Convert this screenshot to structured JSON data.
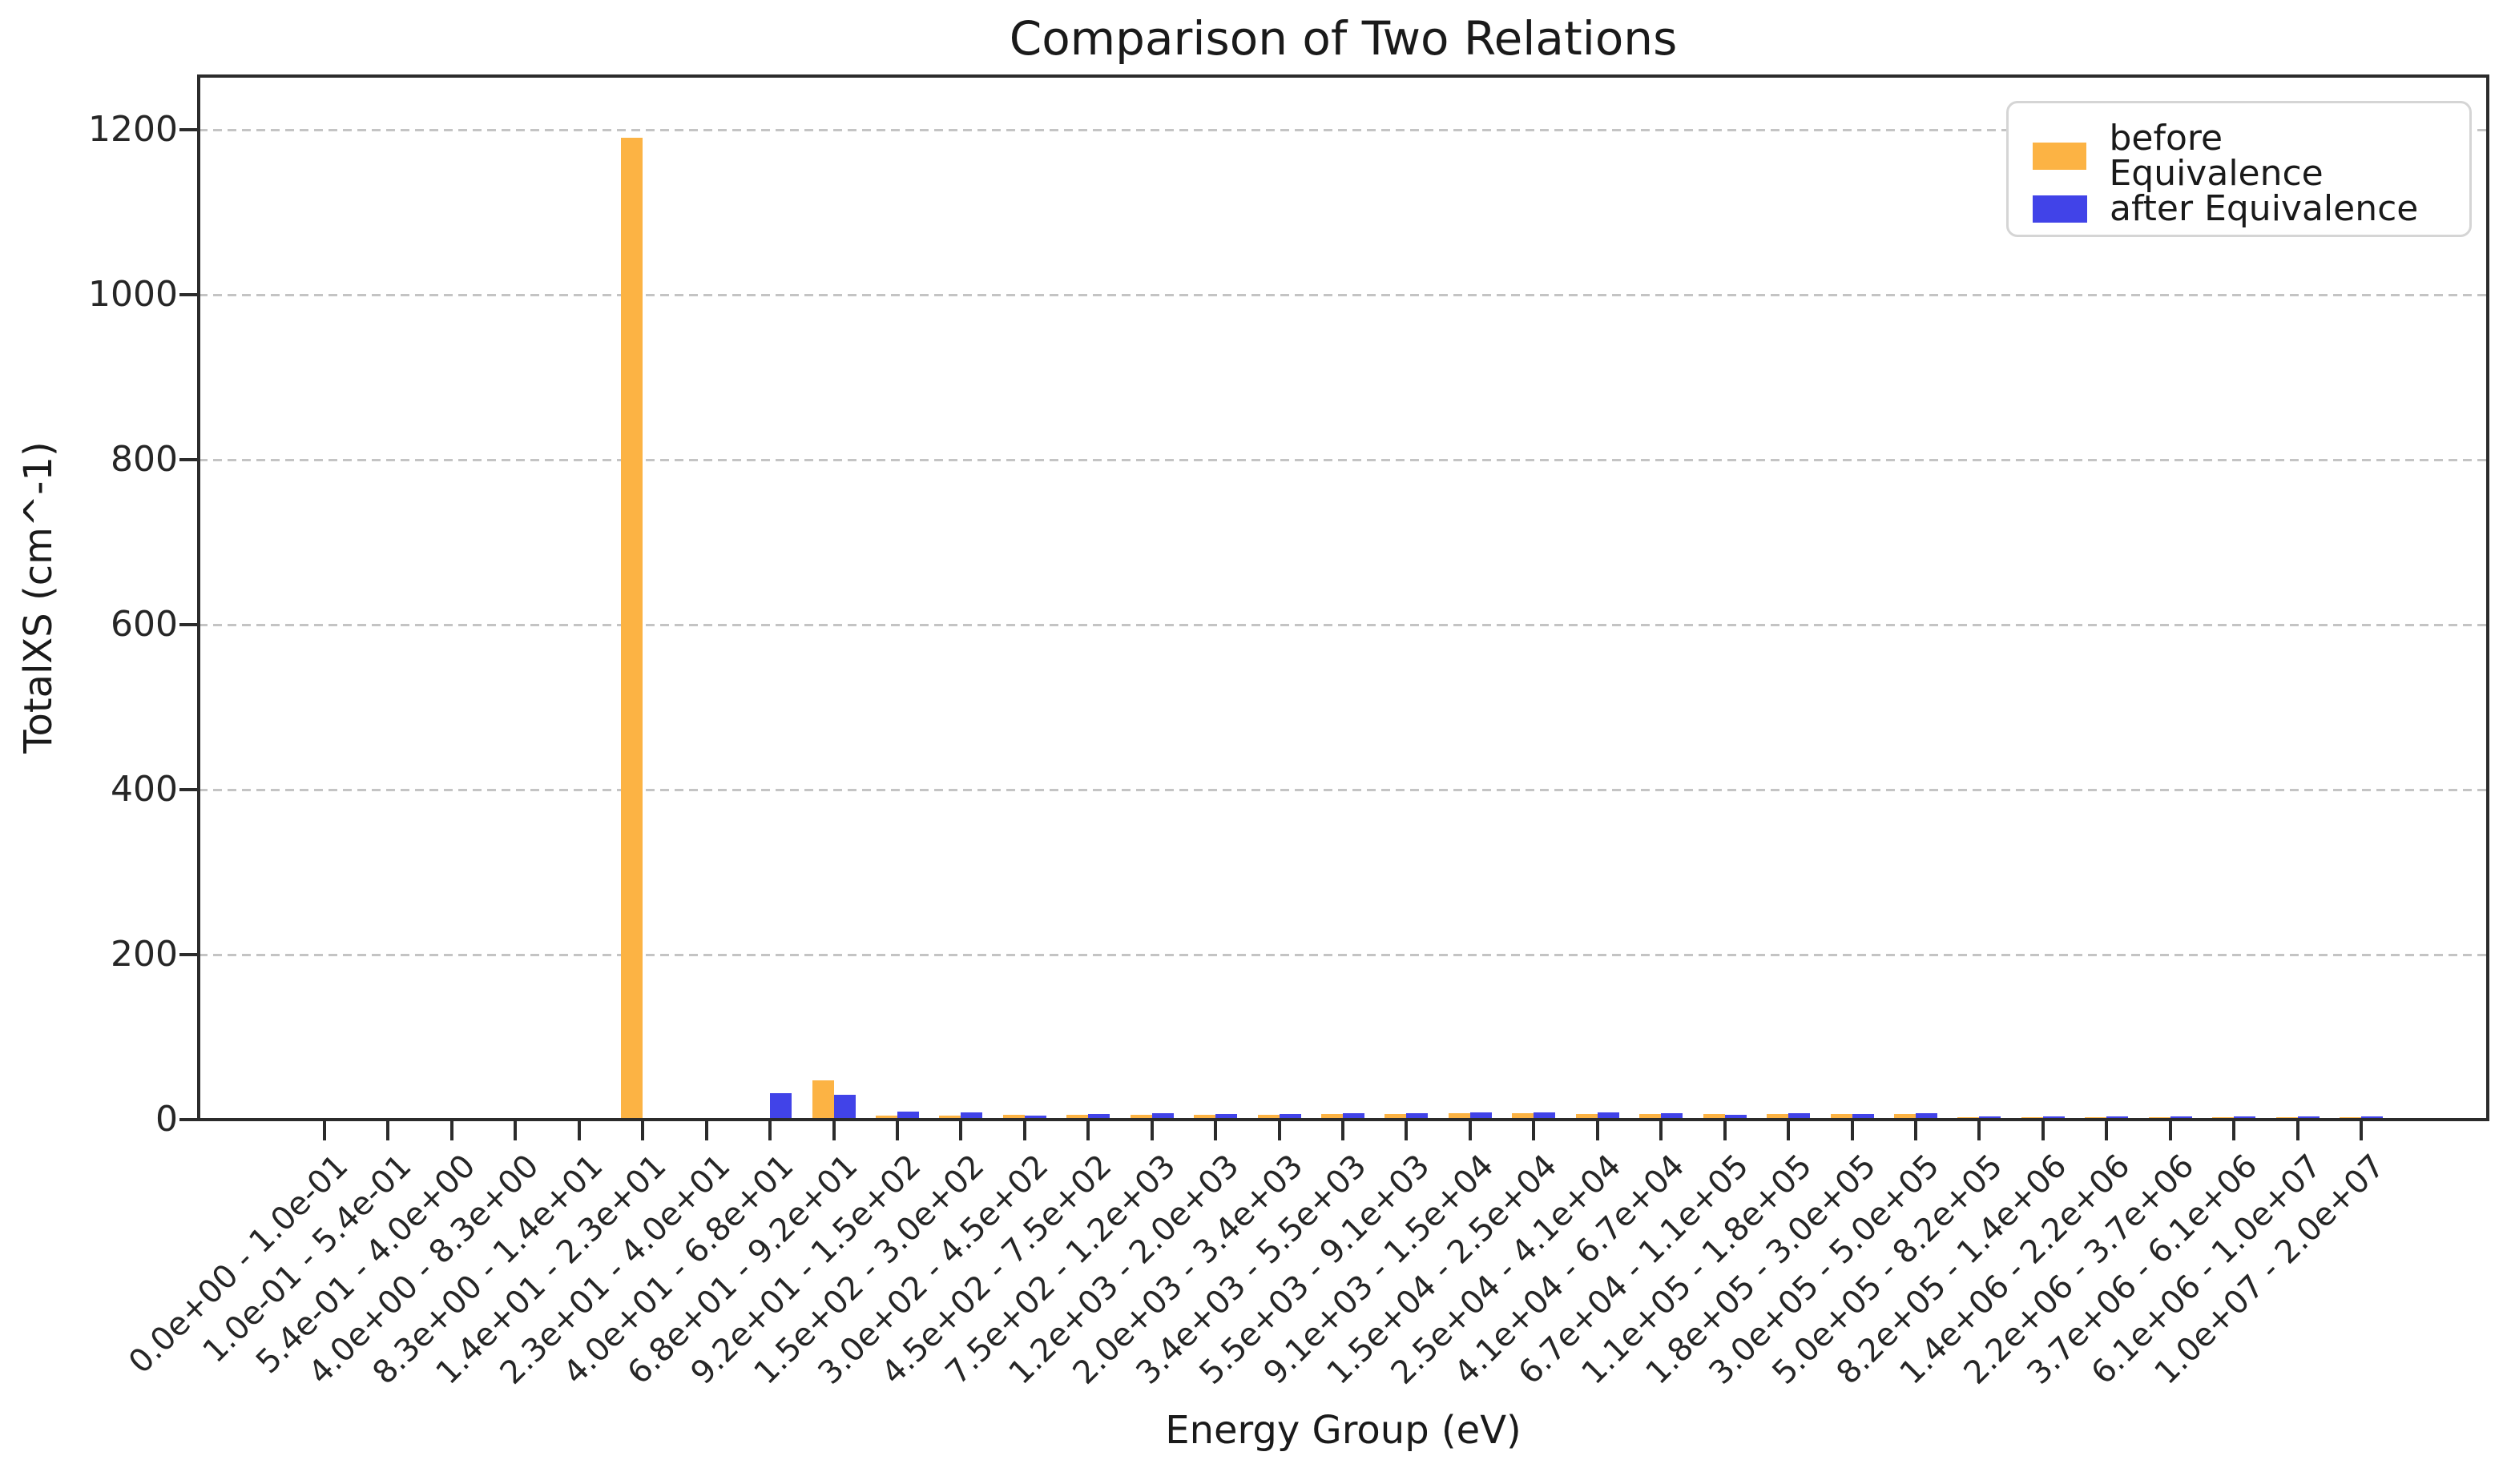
{
  "chart_data": {
    "type": "bar",
    "title": "Comparison of Two Relations",
    "xlabel": "Energy Group (eV)",
    "ylabel": "TotalXS (cm^-1)",
    "ylim": [
      0,
      1265
    ],
    "yticks": [
      0,
      200,
      400,
      600,
      800,
      1000,
      1200
    ],
    "grid": "horizontal-dashed",
    "legend_position": "upper-right",
    "categories": [
      "0.0e+00 - 1.0e-01",
      "1.0e-01 - 5.4e-01",
      "5.4e-01 - 4.0e+00",
      "4.0e+00 - 8.3e+00",
      "8.3e+00 - 1.4e+01",
      "1.4e+01 - 2.3e+01",
      "2.3e+01 - 4.0e+01",
      "4.0e+01 - 6.8e+01",
      "6.8e+01 - 9.2e+01",
      "9.2e+01 - 1.5e+02",
      "1.5e+02 - 3.0e+02",
      "3.0e+02 - 4.5e+02",
      "4.5e+02 - 7.5e+02",
      "7.5e+02 - 1.2e+03",
      "1.2e+03 - 2.0e+03",
      "2.0e+03 - 3.4e+03",
      "3.4e+03 - 5.5e+03",
      "5.5e+03 - 9.1e+03",
      "9.1e+03 - 1.5e+04",
      "1.5e+04 - 2.5e+04",
      "2.5e+04 - 4.1e+04",
      "4.1e+04 - 6.7e+04",
      "6.7e+04 - 1.1e+05",
      "1.1e+05 - 1.8e+05",
      "1.8e+05 - 3.0e+05",
      "3.0e+05 - 5.0e+05",
      "5.0e+05 - 8.2e+05",
      "8.2e+05 - 1.4e+06",
      "1.4e+06 - 2.2e+06",
      "2.2e+06 - 3.7e+06",
      "3.7e+06 - 6.1e+06",
      "6.1e+06 - 1.0e+07",
      "1.0e+07 - 2.0e+07"
    ],
    "series": [
      {
        "name": "before Equivalence",
        "color": "#FCB344",
        "values": [
          0,
          0,
          0,
          0,
          0,
          1190,
          0,
          0,
          48,
          4.5,
          5,
          6,
          6,
          6,
          6,
          6,
          7,
          7,
          8,
          8,
          7,
          7,
          6.5,
          7,
          7,
          6.5,
          3,
          3,
          3,
          3,
          2.5,
          2.5,
          2.5
        ]
      },
      {
        "name": "after Equivalence",
        "color": "#4143E8",
        "values": [
          0,
          0,
          0,
          0,
          0,
          0,
          0,
          32,
          30,
          9.5,
          9,
          4.5,
          7,
          8,
          7,
          7,
          8,
          8,
          8.5,
          8.5,
          8.5,
          8,
          5.5,
          7.5,
          6.5,
          7.5,
          4,
          4,
          3.5,
          4,
          4,
          4,
          4
        ]
      }
    ]
  }
}
